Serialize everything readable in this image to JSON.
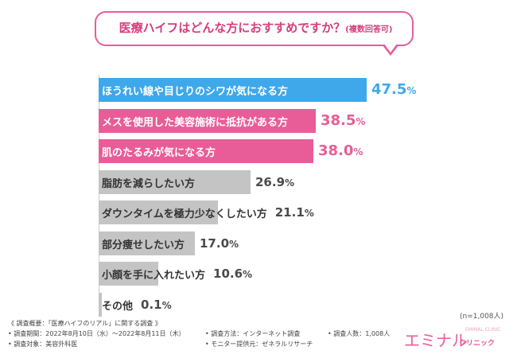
{
  "chart_data": {
    "type": "bar",
    "title": "医療ハイフはどんな方におすすめですか？",
    "subtitle": "(複数回答可)",
    "unit": "%",
    "categories": [
      "ほうれい線や目じりのシワが気になる方",
      "メスを使用した美容施術に抵抗がある方",
      "肌のたるみが気になる方",
      "脂肪を減らしたい方",
      "ダウンタイムを極力少なくしたい方",
      "部分痩せしたい方",
      "小顔を手に入れたい方",
      "その他"
    ],
    "values": [
      47.5,
      38.5,
      38.0,
      26.9,
      21.1,
      17.0,
      10.6,
      0.1
    ],
    "value_labels": [
      "47.5",
      "38.5",
      "38.0",
      "26.9",
      "21.1",
      "17.0",
      "10.6",
      "0.1"
    ],
    "bar_colors": [
      "#3ea8ea",
      "#e85d98",
      "#e85d98",
      "#c4c4c4",
      "#c4c4c4",
      "#c4c4c4",
      "#c4c4c4",
      "#c4c4c4"
    ],
    "label_colors": [
      "#ffffff",
      "#ffffff",
      "#ffffff",
      "#333333",
      "#333333",
      "#333333",
      "#333333",
      "#333333"
    ],
    "highlight_value_colors": [
      "#3ea8ea",
      "#e85d98",
      "#e85d98"
    ],
    "sample_note": "(n=1,008人)"
  },
  "footer": {
    "line1": "《 調査概要：「医療ハイフのリアル」に関する調査 》",
    "period": "• 調査期間：2022年8月10日（水）～2022年8月11日（木）",
    "target": "• 調査対象：美容外科医",
    "method": "• 調査方法：インターネット調査",
    "monitor": "• モニター提供元：ゼネラルリサーチ",
    "count": "• 調査人数：1,008人"
  },
  "logo": {
    "main": "エミナル",
    "sub": "クリニック",
    "tiny": "EMINAL CLINIC"
  }
}
